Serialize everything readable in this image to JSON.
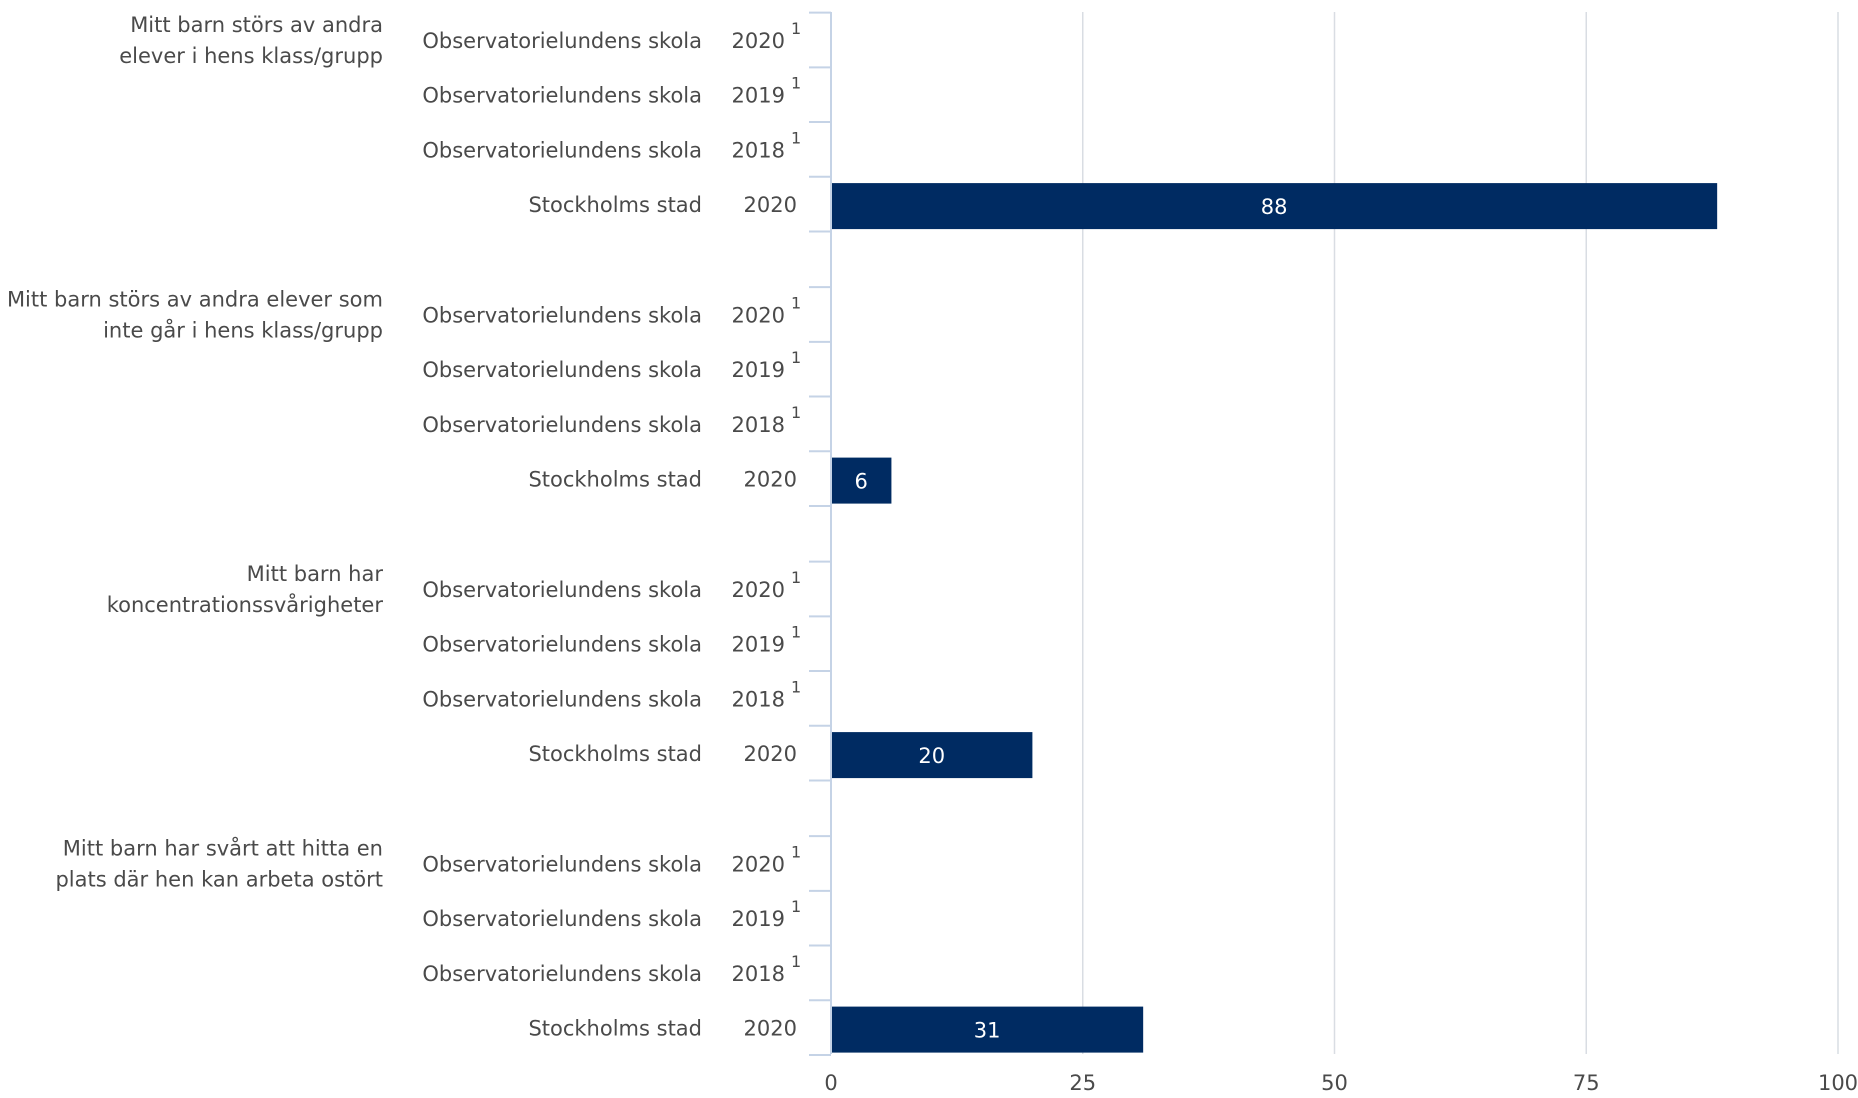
{
  "colors": {
    "bar": "#002b62",
    "grid": "#d9dde3",
    "axis": "#c5d3e6",
    "text": "#4a4a4a",
    "value_text": "#ffffff"
  },
  "chart_data": {
    "type": "bar",
    "orientation": "horizontal",
    "xlim": [
      0,
      100
    ],
    "xticks": [
      "0",
      "25",
      "50",
      "75",
      "100"
    ],
    "grid": true,
    "groups": [
      {
        "label_lines": [
          "Mitt barn störs av andra",
          "elever i hens klass/grupp"
        ],
        "rows": [
          {
            "name": "Observatorielundens skola",
            "year": "2020",
            "note": "1",
            "value": null
          },
          {
            "name": "Observatorielundens skola",
            "year": "2019",
            "note": "1",
            "value": null
          },
          {
            "name": "Observatorielundens skola",
            "year": "2018",
            "note": "1",
            "value": null
          },
          {
            "name": "Stockholms stad",
            "year": "2020",
            "note": "",
            "value": 88
          }
        ]
      },
      {
        "label_lines": [
          "Mitt barn störs av andra elever som",
          "inte går i hens klass/grupp"
        ],
        "rows": [
          {
            "name": "Observatorielundens skola",
            "year": "2020",
            "note": "1",
            "value": null
          },
          {
            "name": "Observatorielundens skola",
            "year": "2019",
            "note": "1",
            "value": null
          },
          {
            "name": "Observatorielundens skola",
            "year": "2018",
            "note": "1",
            "value": null
          },
          {
            "name": "Stockholms stad",
            "year": "2020",
            "note": "",
            "value": 6
          }
        ]
      },
      {
        "label_lines": [
          "Mitt barn har",
          "koncentrationssvårigheter"
        ],
        "rows": [
          {
            "name": "Observatorielundens skola",
            "year": "2020",
            "note": "1",
            "value": null
          },
          {
            "name": "Observatorielundens skola",
            "year": "2019",
            "note": "1",
            "value": null
          },
          {
            "name": "Observatorielundens skola",
            "year": "2018",
            "note": "1",
            "value": null
          },
          {
            "name": "Stockholms stad",
            "year": "2020",
            "note": "",
            "value": 20
          }
        ]
      },
      {
        "label_lines": [
          "Mitt barn har svårt att hitta en",
          "plats där hen kan arbeta ostört"
        ],
        "rows": [
          {
            "name": "Observatorielundens skola",
            "year": "2020",
            "note": "1",
            "value": null
          },
          {
            "name": "Observatorielundens skola",
            "year": "2019",
            "note": "1",
            "value": null
          },
          {
            "name": "Observatorielundens skola",
            "year": "2018",
            "note": "1",
            "value": null
          },
          {
            "name": "Stockholms stad",
            "year": "2020",
            "note": "",
            "value": 31
          }
        ]
      }
    ]
  }
}
